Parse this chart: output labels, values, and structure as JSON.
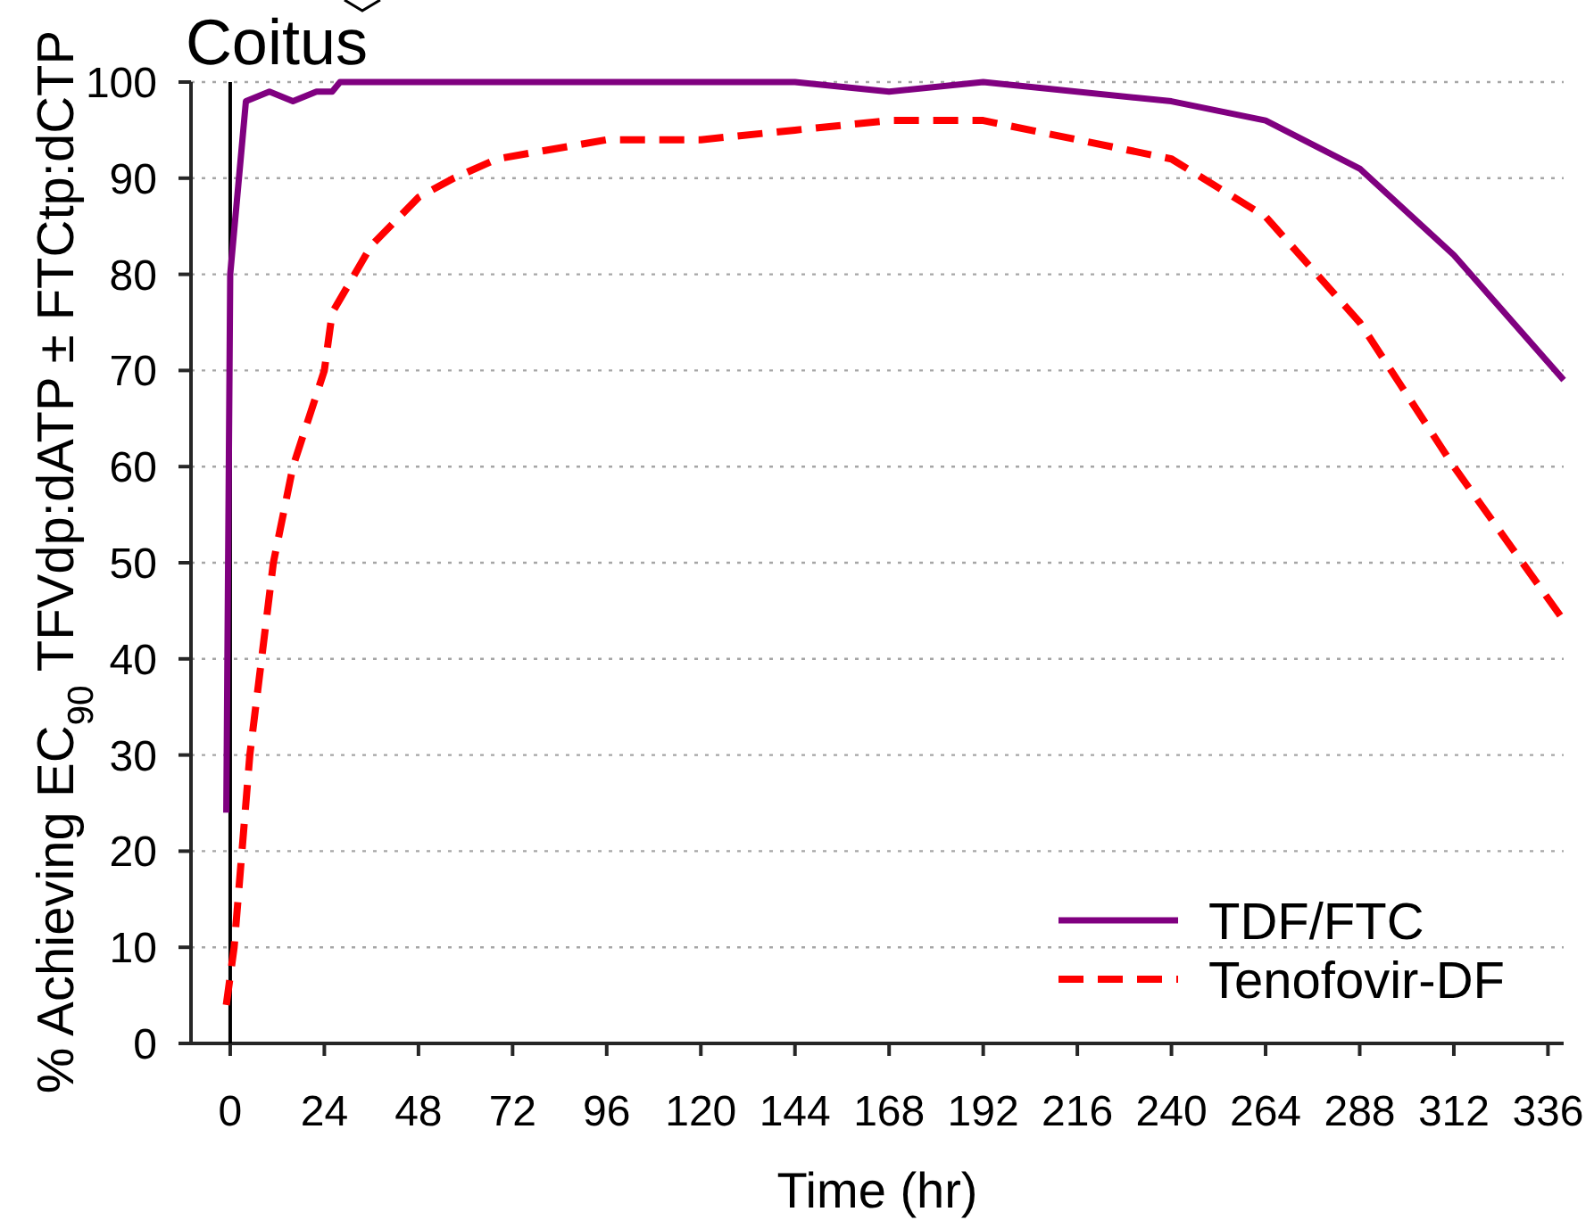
{
  "chart_data": {
    "type": "line",
    "xlabel": "Time (hr)",
    "ylabel": "% Achieving EC$_{90}$ TFVdp:dATP ± FTCtp:dCTP",
    "xlim": [
      -10,
      340
    ],
    "xticks": [
      0,
      24,
      48,
      72,
      96,
      120,
      144,
      168,
      192,
      216,
      240,
      264,
      288,
      312,
      336
    ],
    "ylim": [
      0,
      100
    ],
    "yticks": [
      0,
      10,
      20,
      30,
      40,
      50,
      60,
      70,
      80,
      90,
      100
    ],
    "grid": "y",
    "legend": "bottom right",
    "ref_lines": [
      {
        "axis": "x",
        "value": 0,
        "label": "Coitus",
        "color": "#000000"
      }
    ],
    "series": [
      {
        "name": "TDF/FTC",
        "color": "#800080",
        "line_style": "solid",
        "x": [
          -1,
          0,
          4,
          10,
          16,
          22,
          26,
          28,
          144,
          168,
          192,
          240,
          264,
          288,
          312,
          340
        ],
        "values": [
          24,
          80,
          98,
          99,
          98,
          99,
          99,
          100,
          100,
          99,
          100,
          98,
          96,
          91,
          82,
          69
        ]
      },
      {
        "name": "Tenofovir-DF",
        "color": "#ff0000",
        "line_style": "dashed",
        "x": [
          -1,
          1,
          3,
          5,
          8,
          11,
          16,
          24,
          26,
          36,
          48,
          57,
          68,
          96,
          120,
          144,
          168,
          192,
          240,
          264,
          288,
          312,
          340
        ],
        "values": [
          4,
          10,
          20,
          30,
          40,
          50,
          60,
          70,
          76,
          83,
          88,
          90,
          92,
          94,
          94,
          95,
          96,
          96,
          92,
          86,
          75,
          60,
          44
        ]
      }
    ]
  }
}
